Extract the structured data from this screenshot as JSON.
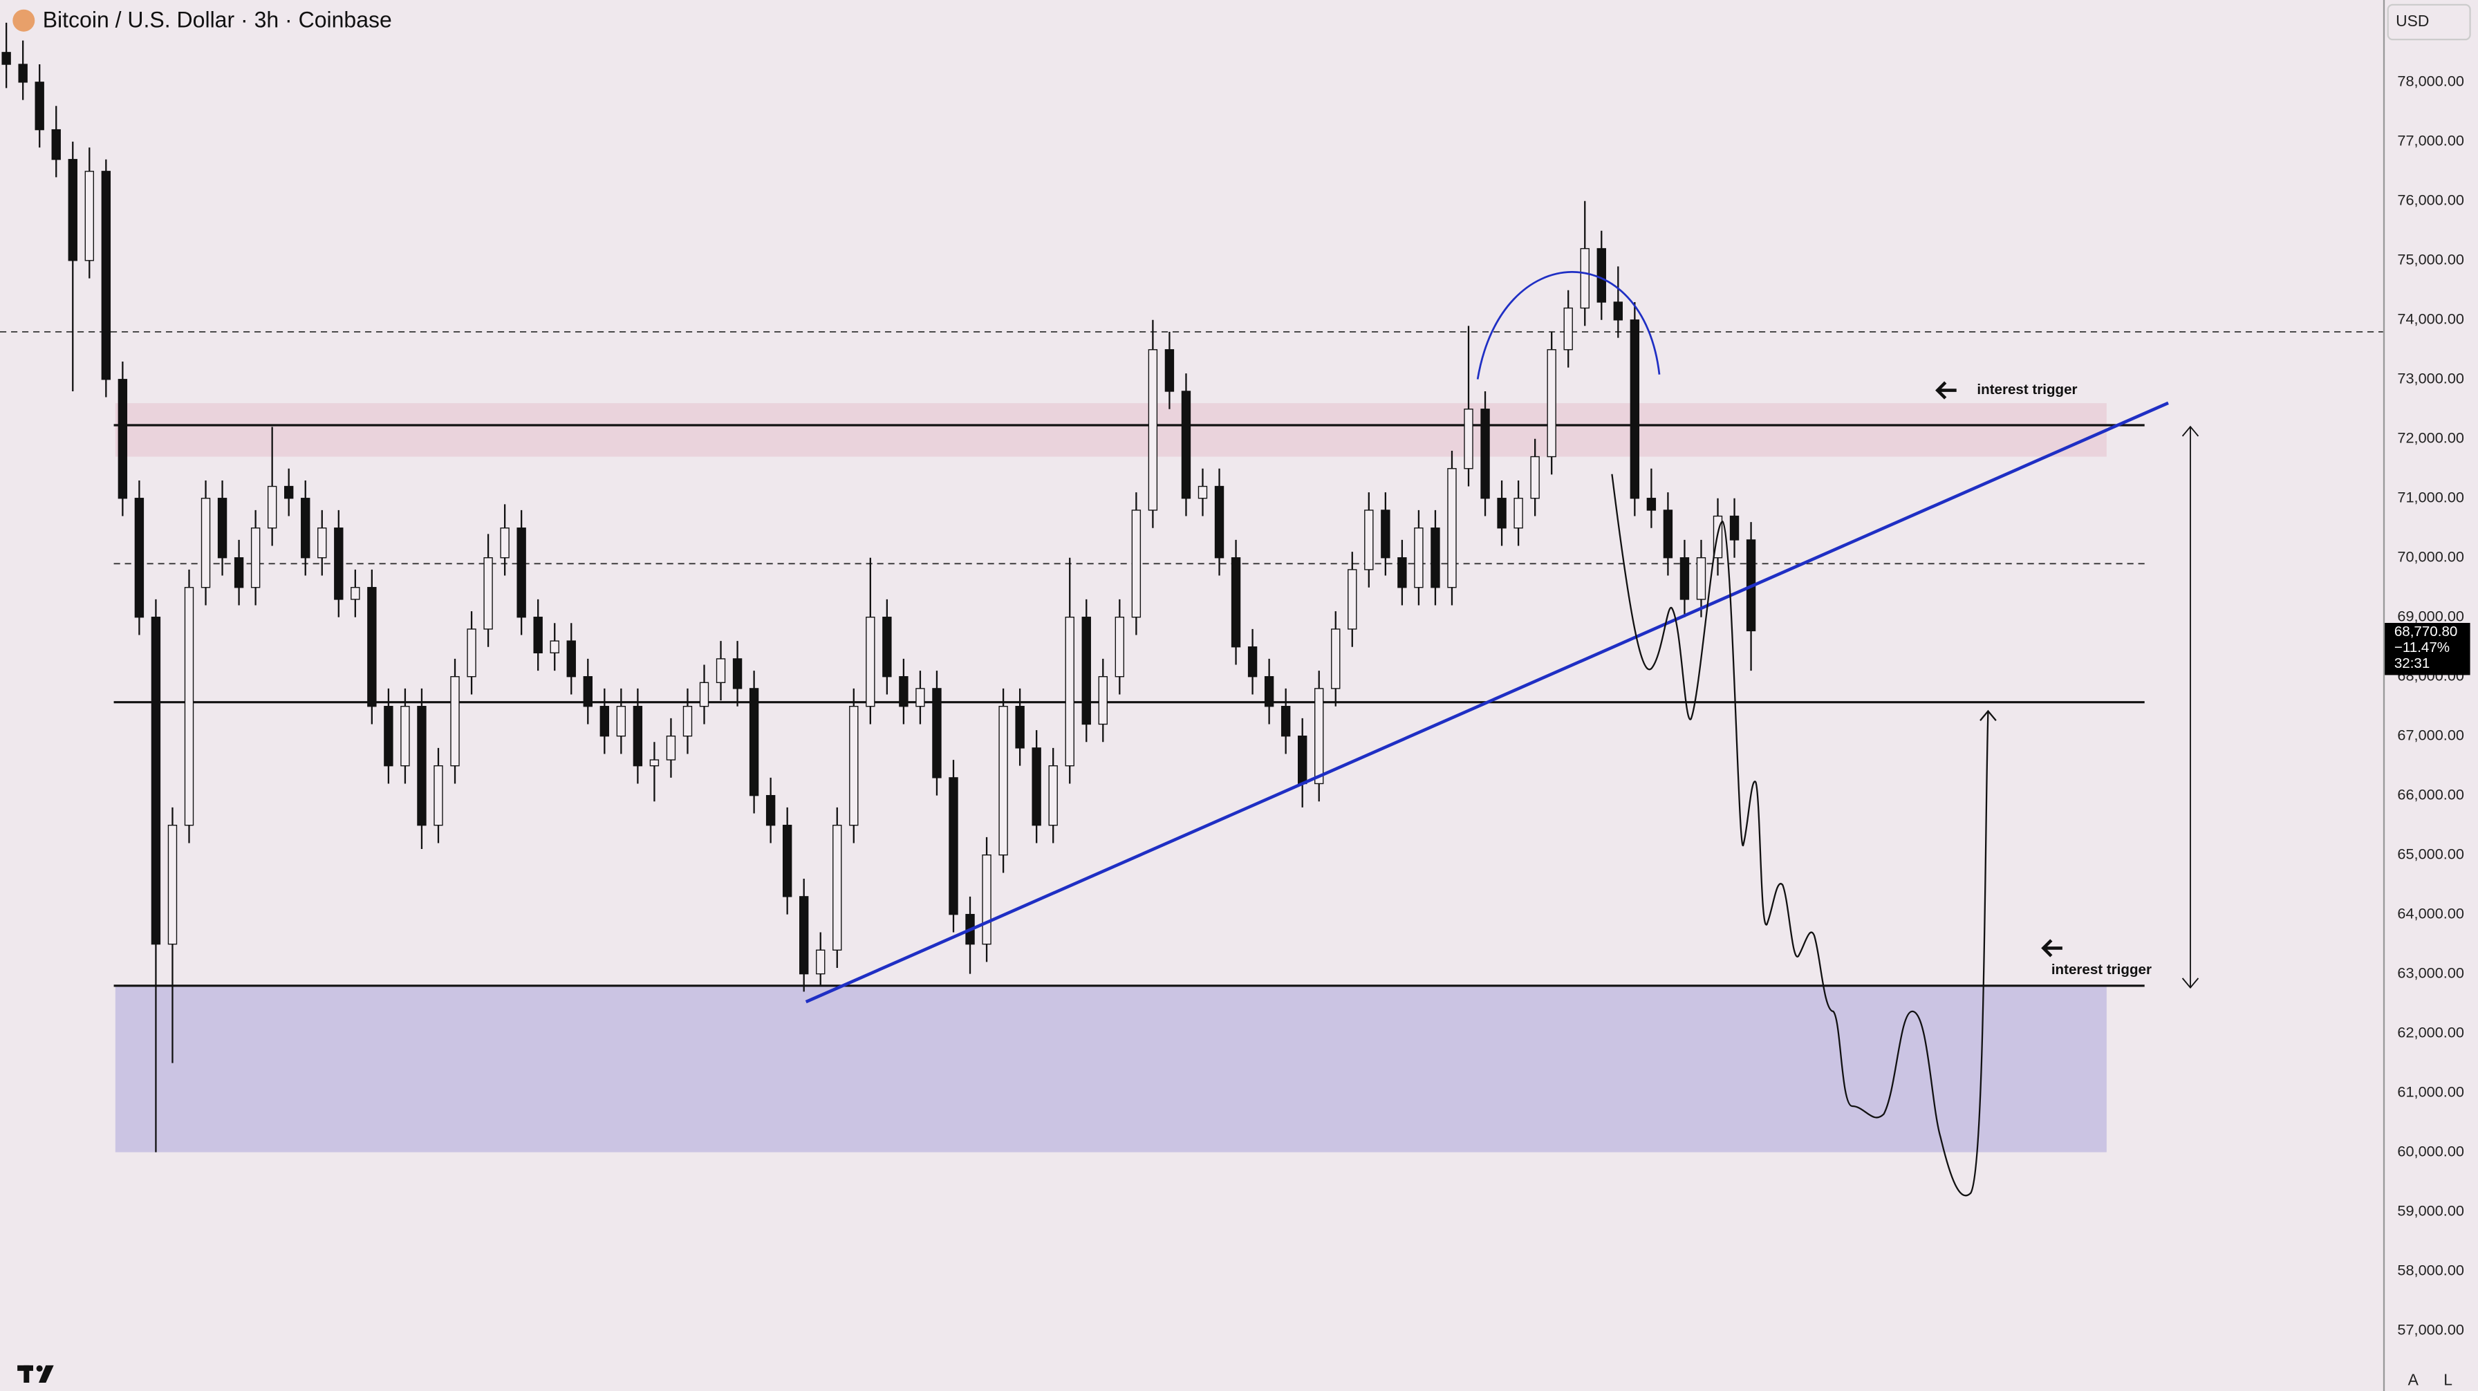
{
  "header": {
    "title": "Bitcoin / U.S. Dollar · 3h · Coinbase",
    "currency": "USD"
  },
  "chart_data": {
    "type": "candlestick",
    "up_color": "#f4eef2",
    "down_color": "#111111",
    "ylim": [
      55983,
      79382
    ],
    "yticks": [
      {
        "value": 57000,
        "label": "57,000.00"
      },
      {
        "value": 58000,
        "label": "58,000.00"
      },
      {
        "value": 59000,
        "label": "59,000.00"
      },
      {
        "value": 60000,
        "label": "60,000.00"
      },
      {
        "value": 61000,
        "label": "61,000.00"
      },
      {
        "value": 62000,
        "label": "62,000.00"
      },
      {
        "value": 63000,
        "label": "63,000.00"
      },
      {
        "value": 64000,
        "label": "64,000.00"
      },
      {
        "value": 65000,
        "label": "65,000.00"
      },
      {
        "value": 66000,
        "label": "66,000.00"
      },
      {
        "value": 67000,
        "label": "67,000.00"
      },
      {
        "value": 68000,
        "label": "68,000.00"
      },
      {
        "value": 69000,
        "label": "69,000.00"
      },
      {
        "value": 70000,
        "label": "70,000.00"
      },
      {
        "value": 71000,
        "label": "71,000.00"
      },
      {
        "value": 72000,
        "label": "72,000.00"
      },
      {
        "value": 73000,
        "label": "73,000.00"
      },
      {
        "value": 74000,
        "label": "74,000.00"
      },
      {
        "value": 75000,
        "label": "75,000.00"
      },
      {
        "value": 76000,
        "label": "76,000.00"
      },
      {
        "value": 77000,
        "label": "77,000.00"
      },
      {
        "value": 78000,
        "label": "78,000.00"
      }
    ],
    "ohlc": [
      [
        78500,
        79000,
        77900,
        78300
      ],
      [
        78300,
        78700,
        77700,
        78000
      ],
      [
        78000,
        78300,
        76900,
        77200
      ],
      [
        77200,
        77600,
        76400,
        76700
      ],
      [
        76700,
        77000,
        72800,
        75000
      ],
      [
        75000,
        76900,
        74700,
        76500
      ],
      [
        76500,
        76700,
        72700,
        73000
      ],
      [
        73000,
        73300,
        70700,
        71000
      ],
      [
        71000,
        71300,
        68700,
        69000
      ],
      [
        69000,
        69300,
        60000,
        63500
      ],
      [
        63500,
        65800,
        61500,
        65500
      ],
      [
        65500,
        69800,
        65200,
        69500
      ],
      [
        69500,
        71300,
        69200,
        71000
      ],
      [
        71000,
        71300,
        69700,
        70000
      ],
      [
        70000,
        70300,
        69200,
        69500
      ],
      [
        69500,
        70800,
        69200,
        70500
      ],
      [
        70500,
        72200,
        70200,
        71200
      ],
      [
        71200,
        71500,
        70700,
        71000
      ],
      [
        71000,
        71300,
        69700,
        70000
      ],
      [
        70000,
        70800,
        69700,
        70500
      ],
      [
        70500,
        70800,
        69000,
        69300
      ],
      [
        69300,
        69800,
        69000,
        69500
      ],
      [
        69500,
        69800,
        67200,
        67500
      ],
      [
        67500,
        67800,
        66200,
        66500
      ],
      [
        66500,
        67800,
        66200,
        67500
      ],
      [
        67500,
        67800,
        65100,
        65500
      ],
      [
        65500,
        66800,
        65200,
        66500
      ],
      [
        66500,
        68300,
        66200,
        68000
      ],
      [
        68000,
        69100,
        67700,
        68800
      ],
      [
        68800,
        70400,
        68500,
        70000
      ],
      [
        70000,
        70900,
        69700,
        70500
      ],
      [
        70500,
        70800,
        68700,
        69000
      ],
      [
        69000,
        69300,
        68100,
        68400
      ],
      [
        68400,
        68900,
        68100,
        68600
      ],
      [
        68600,
        68900,
        67700,
        68000
      ],
      [
        68000,
        68300,
        67200,
        67500
      ],
      [
        67500,
        67800,
        66700,
        67000
      ],
      [
        67000,
        67800,
        66700,
        67500
      ],
      [
        67500,
        67800,
        66200,
        66500
      ],
      [
        66500,
        66900,
        65900,
        66600
      ],
      [
        66600,
        67300,
        66300,
        67000
      ],
      [
        67000,
        67800,
        66700,
        67500
      ],
      [
        67500,
        68200,
        67200,
        67900
      ],
      [
        67900,
        68600,
        67600,
        68300
      ],
      [
        68300,
        68600,
        67500,
        67800
      ],
      [
        67800,
        68100,
        65700,
        66000
      ],
      [
        66000,
        66300,
        65200,
        65500
      ],
      [
        65500,
        65800,
        64000,
        64300
      ],
      [
        64300,
        64600,
        62700,
        63000
      ],
      [
        63000,
        63700,
        62800,
        63400
      ],
      [
        63400,
        65800,
        63100,
        65500
      ],
      [
        65500,
        67800,
        65200,
        67500
      ],
      [
        67500,
        70000,
        67200,
        69000
      ],
      [
        69000,
        69300,
        67700,
        68000
      ],
      [
        68000,
        68300,
        67200,
        67500
      ],
      [
        67500,
        68100,
        67200,
        67800
      ],
      [
        67800,
        68100,
        66000,
        66300
      ],
      [
        66300,
        66600,
        63700,
        64000
      ],
      [
        64000,
        64300,
        63000,
        63500
      ],
      [
        63500,
        65300,
        63200,
        65000
      ],
      [
        65000,
        67800,
        64700,
        67500
      ],
      [
        67500,
        67800,
        66500,
        66800
      ],
      [
        66800,
        67100,
        65200,
        65500
      ],
      [
        65500,
        66800,
        65200,
        66500
      ],
      [
        66500,
        70000,
        66200,
        69000
      ],
      [
        69000,
        69300,
        66900,
        67200
      ],
      [
        67200,
        68300,
        66900,
        68000
      ],
      [
        68000,
        69300,
        67700,
        69000
      ],
      [
        69000,
        71100,
        68700,
        70800
      ],
      [
        70800,
        74000,
        70500,
        73500
      ],
      [
        73500,
        73800,
        72500,
        72800
      ],
      [
        72800,
        73100,
        70700,
        71000
      ],
      [
        71000,
        71500,
        70700,
        71200
      ],
      [
        71200,
        71500,
        69700,
        70000
      ],
      [
        70000,
        70300,
        68200,
        68500
      ],
      [
        68500,
        68800,
        67700,
        68000
      ],
      [
        68000,
        68300,
        67200,
        67500
      ],
      [
        67500,
        67800,
        66700,
        67000
      ],
      [
        67000,
        67300,
        65800,
        66200
      ],
      [
        66200,
        68100,
        65900,
        67800
      ],
      [
        67800,
        69100,
        67500,
        68800
      ],
      [
        68800,
        70100,
        68500,
        69800
      ],
      [
        69800,
        71100,
        69500,
        70800
      ],
      [
        70800,
        71100,
        69700,
        70000
      ],
      [
        70000,
        70300,
        69200,
        69500
      ],
      [
        69500,
        70800,
        69200,
        70500
      ],
      [
        70500,
        70800,
        69200,
        69500
      ],
      [
        69500,
        71800,
        69200,
        71500
      ],
      [
        71500,
        73900,
        71200,
        72500
      ],
      [
        72500,
        72800,
        70700,
        71000
      ],
      [
        71000,
        71300,
        70200,
        70500
      ],
      [
        70500,
        71300,
        70200,
        71000
      ],
      [
        71000,
        72000,
        70700,
        71700
      ],
      [
        71700,
        73800,
        71400,
        73500
      ],
      [
        73500,
        74500,
        73200,
        74200
      ],
      [
        74200,
        76000,
        73900,
        75200
      ],
      [
        75200,
        75500,
        74000,
        74300
      ],
      [
        74300,
        74900,
        73700,
        74000
      ],
      [
        74000,
        74300,
        70700,
        71000
      ],
      [
        71000,
        71500,
        70500,
        70800
      ],
      [
        70800,
        71100,
        69700,
        70000
      ],
      [
        70000,
        70300,
        69000,
        69300
      ],
      [
        69300,
        70300,
        69000,
        70000
      ],
      [
        70000,
        71000,
        69700,
        70700
      ],
      [
        70700,
        71000,
        70000,
        70300
      ],
      [
        70300,
        70600,
        68100,
        68770.8
      ]
    ],
    "levels": [
      72230,
      67570,
      62800
    ],
    "dashed_levels": [
      73800,
      69900
    ],
    "zones": [
      {
        "range": [
          71700,
          72600
        ],
        "color": "#ead3dc"
      },
      {
        "range": [
          60000,
          62800
        ],
        "color": "#cbc4e3"
      }
    ],
    "annotations": [
      "interest trigger",
      "interest trigger"
    ],
    "last": {
      "price": "68,770.80",
      "change": "−11.47%",
      "countdown": "32:31"
    }
  },
  "footer": {
    "buttons": [
      "A",
      "L"
    ]
  }
}
